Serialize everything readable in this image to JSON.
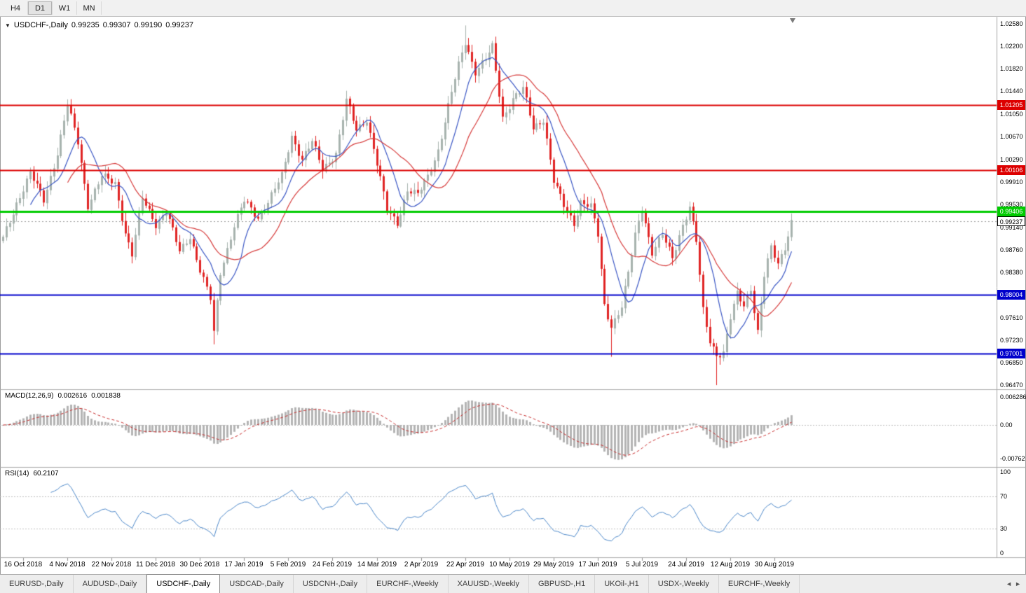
{
  "toolbar": {
    "timeframes": [
      "H4",
      "D1",
      "W1",
      "MN"
    ],
    "active": "D1"
  },
  "window": {
    "tabs": [
      "EURUSD-,Daily",
      "AUDUSD-,Daily",
      "USDCHF-,Daily",
      "USDCAD-,Daily",
      "USDCNH-,Daily",
      "EURCHF-,Weekly",
      "XAUUSD-,Weekly",
      "GBPUSD-,H1",
      "UKOil-,H1",
      "USDX-,Weekly",
      "EURCHF-,Weekly"
    ],
    "active_tab_index": 2
  },
  "colors": {
    "bear": "#e02424",
    "bull_border": "#a7b3ae",
    "ma_fast": "#3a56c4",
    "ma_slow": "#d63a3a",
    "level_red": "#dd0000",
    "level_green": "#00cc00",
    "level_blue": "#0000cc",
    "macd_hist": "#b4b4b4",
    "macd_signal": "#c62828",
    "rsi_line": "#4a86c8",
    "grid_dash": "#c0c0c0",
    "current_dash": "#999999"
  },
  "chart": {
    "title": {
      "icon": "▼",
      "symbol": "USDCHF-,Daily",
      "open": "0.99235",
      "high": "0.99307",
      "low": "0.99190",
      "close": "0.99237"
    },
    "current_price": {
      "label": "0.99237",
      "value": 0.99237
    },
    "price_axis": {
      "labels": [
        {
          "label": "1.02580",
          "value": 1.0258
        },
        {
          "label": "1.02200",
          "value": 1.022
        },
        {
          "label": "1.01820",
          "value": 1.0182
        },
        {
          "label": "1.01440",
          "value": 1.0144
        },
        {
          "label": "1.01050",
          "value": 1.0105
        },
        {
          "label": "1.00670",
          "value": 1.0067
        },
        {
          "label": "1.00290",
          "value": 1.0029
        },
        {
          "label": "0.99910",
          "value": 0.9991
        },
        {
          "label": "0.99530",
          "value": 0.9953
        },
        {
          "label": "0.99140",
          "value": 0.9914
        },
        {
          "label": "0.98760",
          "value": 0.9876
        },
        {
          "label": "0.98380",
          "value": 0.9838
        },
        {
          "label": "0.97610",
          "value": 0.9761
        },
        {
          "label": "0.97230",
          "value": 0.9723
        },
        {
          "label": "0.96850",
          "value": 0.9685
        },
        {
          "label": "0.96470",
          "value": 0.9647
        }
      ]
    },
    "levels": [
      {
        "label": "1.01205",
        "value": 1.01205,
        "color": "#dd0000",
        "width": 2,
        "kind": "resistance"
      },
      {
        "label": "1.00106",
        "value": 1.00106,
        "color": "#dd0000",
        "width": 2,
        "kind": "resistance"
      },
      {
        "label": "0.99406",
        "value": 0.99406,
        "color": "#00cc00",
        "width": 3,
        "kind": "pivot"
      },
      {
        "label": "0.98004",
        "value": 0.98004,
        "color": "#0000cc",
        "width": 2,
        "kind": "support"
      },
      {
        "label": "0.97001",
        "value": 0.97001,
        "color": "#0000cc",
        "width": 2,
        "kind": "support"
      }
    ],
    "date_axis": [
      {
        "label": "16 Oct 2018",
        "bar": 6
      },
      {
        "label": "4 Nov 2018",
        "bar": 19
      },
      {
        "label": "22 Nov 2018",
        "bar": 32
      },
      {
        "label": "11 Dec 2018",
        "bar": 45
      },
      {
        "label": "30 Dec 2018",
        "bar": 58
      },
      {
        "label": "17 Jan 2019",
        "bar": 71
      },
      {
        "label": "5 Feb 2019",
        "bar": 84
      },
      {
        "label": "24 Feb 2019",
        "bar": 97
      },
      {
        "label": "14 Mar 2019",
        "bar": 110
      },
      {
        "label": "2 Apr 2019",
        "bar": 123
      },
      {
        "label": "22 Apr 2019",
        "bar": 136
      },
      {
        "label": "10 May 2019",
        "bar": 149
      },
      {
        "label": "29 May 2019",
        "bar": 162
      },
      {
        "label": "17 Jun 2019",
        "bar": 175
      },
      {
        "label": "5 Jul 2019",
        "bar": 188
      },
      {
        "label": "24 Jul 2019",
        "bar": 201
      },
      {
        "label": "12 Aug 2019",
        "bar": 214
      },
      {
        "label": "30 Aug 2019",
        "bar": 227
      }
    ],
    "chart_data": {
      "type": "candlestick",
      "bars": 233,
      "ma_fast_period": 9,
      "ma_slow_period": 20,
      "anchor_closes": [
        [
          0,
          0.9895
        ],
        [
          4,
          0.9955
        ],
        [
          8,
          1.0005
        ],
        [
          12,
          0.996
        ],
        [
          16,
          1.004
        ],
        [
          19,
          1.012
        ],
        [
          22,
          1.0058
        ],
        [
          25,
          0.9952
        ],
        [
          29,
          1.0
        ],
        [
          33,
          0.9988
        ],
        [
          36,
          0.9905
        ],
        [
          38,
          0.9868
        ],
        [
          41,
          0.9962
        ],
        [
          45,
          0.992
        ],
        [
          48,
          0.9942
        ],
        [
          52,
          0.9872
        ],
        [
          55,
          0.99
        ],
        [
          58,
          0.9842
        ],
        [
          61,
          0.9792
        ],
        [
          62,
          0.9735
        ],
        [
          64,
          0.9838
        ],
        [
          68,
          0.9918
        ],
        [
          71,
          0.9958
        ],
        [
          75,
          0.993
        ],
        [
          78,
          0.9958
        ],
        [
          82,
          1.0
        ],
        [
          85,
          1.0068
        ],
        [
          88,
          1.003
        ],
        [
          91,
          1.0058
        ],
        [
          94,
          1.0012
        ],
        [
          98,
          1.004
        ],
        [
          101,
          1.0128
        ],
        [
          104,
          1.0078
        ],
        [
          107,
          1.0098
        ],
        [
          110,
          1.0022
        ],
        [
          113,
          0.9942
        ],
        [
          116,
          0.9922
        ],
        [
          119,
          0.9978
        ],
        [
          122,
          0.9968
        ],
        [
          125,
          1.0
        ],
        [
          128,
          1.0045
        ],
        [
          131,
          1.0118
        ],
        [
          134,
          1.0188
        ],
        [
          136,
          1.0228
        ],
        [
          139,
          1.0178
        ],
        [
          142,
          1.0198
        ],
        [
          144,
          1.0218
        ],
        [
          147,
          1.01
        ],
        [
          150,
          1.0132
        ],
        [
          153,
          1.0148
        ],
        [
          156,
          1.0082
        ],
        [
          159,
          1.0098
        ],
        [
          162,
          0.9992
        ],
        [
          165,
          0.995
        ],
        [
          168,
          0.9922
        ],
        [
          170,
          0.9958
        ],
        [
          173,
          0.9948
        ],
        [
          175,
          0.99
        ],
        [
          177,
          0.9782
        ],
        [
          179,
          0.9748
        ],
        [
          182,
          0.978
        ],
        [
          184,
          0.9836
        ],
        [
          186,
          0.99
        ],
        [
          188,
          0.9948
        ],
        [
          191,
          0.9872
        ],
        [
          194,
          0.99
        ],
        [
          197,
          0.9862
        ],
        [
          200,
          0.992
        ],
        [
          202,
          0.9948
        ],
        [
          204,
          0.989
        ],
        [
          206,
          0.9772
        ],
        [
          208,
          0.9722
        ],
        [
          210,
          0.97
        ],
        [
          212,
          0.9702
        ],
        [
          214,
          0.976
        ],
        [
          216,
          0.98
        ],
        [
          218,
          0.9782
        ],
        [
          220,
          0.9812
        ],
        [
          222,
          0.9738
        ],
        [
          224,
          0.9832
        ],
        [
          226,
          0.9878
        ],
        [
          228,
          0.9852
        ],
        [
          230,
          0.9882
        ],
        [
          232,
          0.9924
        ]
      ],
      "wick_lows": [
        [
          62,
          0.9716
        ],
        [
          179,
          0.9695
        ],
        [
          210,
          0.9647
        ]
      ],
      "wick_highs": [
        [
          19,
          1.01304
        ],
        [
          101,
          1.01412
        ],
        [
          136,
          1.02554
        ],
        [
          232,
          0.99307
        ]
      ]
    }
  },
  "macd": {
    "name": "MACD(12,26,9)",
    "value_main": "0.002616",
    "value_signal": "0.001838",
    "params": {
      "fast": 12,
      "slow": 26,
      "signal": 9
    },
    "axis": [
      {
        "label": "0.006286",
        "value": 0.006286
      },
      {
        "label": "0.00",
        "value": 0
      },
      {
        "label": "-0.00762",
        "value": -0.00762
      }
    ]
  },
  "rsi": {
    "name": "RSI(14)",
    "value": "60.2107",
    "period": 14,
    "levels": [
      70,
      30
    ],
    "axis": [
      {
        "label": "100",
        "value": 100
      },
      {
        "label": "70",
        "value": 70
      },
      {
        "label": "30",
        "value": 30
      },
      {
        "label": "0",
        "value": 0
      }
    ]
  }
}
